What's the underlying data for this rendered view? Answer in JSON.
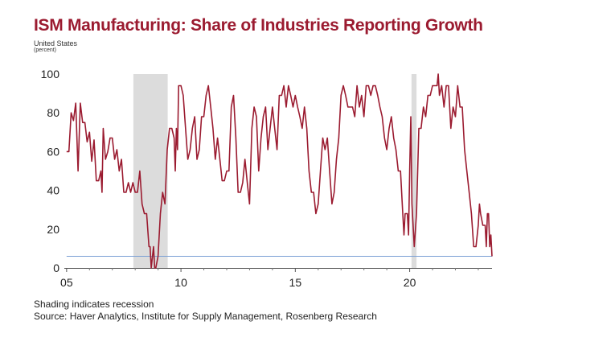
{
  "title": "ISM Manufacturing: Share of Industries Reporting Growth",
  "subtitle_region": "United States",
  "subtitle_unit": "(percent)",
  "footnote": "Shading indicates recession",
  "source": "Source: Haver Analytics, Institute for Supply Management, Rosenberg Research",
  "colors": {
    "series": "#9b1b30",
    "reference": "#7a9fd4",
    "recession": "#dcdcdc",
    "title": "#9b1b30"
  },
  "chart_data": {
    "type": "line",
    "title": "ISM Manufacturing: Share of Industries Reporting Growth",
    "xlabel": "",
    "ylabel": "percent",
    "xlim": [
      2004.9,
      2023.6
    ],
    "ylim": [
      0,
      100
    ],
    "x_ticks": [
      2005,
      2010,
      2015,
      2020
    ],
    "x_tick_labels": [
      "05",
      "10",
      "15",
      "20"
    ],
    "y_ticks": [
      0,
      20,
      40,
      60,
      80,
      100
    ],
    "y_tick_labels": [
      "0",
      "20",
      "40",
      "60",
      "80",
      "100"
    ],
    "recessions": [
      [
        2007.92,
        2009.42
      ],
      [
        2020.08,
        2020.3
      ]
    ],
    "reference_line": 6,
    "series": [
      {
        "name": "Share of industries reporting growth",
        "points": [
          [
            2005.0,
            60
          ],
          [
            2005.1,
            60
          ],
          [
            2005.2,
            80
          ],
          [
            2005.3,
            76
          ],
          [
            2005.4,
            85
          ],
          [
            2005.5,
            50
          ],
          [
            2005.6,
            85
          ],
          [
            2005.7,
            75
          ],
          [
            2005.8,
            75
          ],
          [
            2005.9,
            65
          ],
          [
            2006.0,
            70
          ],
          [
            2006.1,
            55
          ],
          [
            2006.2,
            66
          ],
          [
            2006.3,
            45
          ],
          [
            2006.4,
            45
          ],
          [
            2006.5,
            50
          ],
          [
            2006.55,
            39
          ],
          [
            2006.6,
            72
          ],
          [
            2006.7,
            56
          ],
          [
            2006.8,
            60
          ],
          [
            2006.9,
            67
          ],
          [
            2007.0,
            67
          ],
          [
            2007.1,
            56
          ],
          [
            2007.2,
            61
          ],
          [
            2007.3,
            50
          ],
          [
            2007.4,
            56
          ],
          [
            2007.5,
            39
          ],
          [
            2007.6,
            39
          ],
          [
            2007.7,
            44
          ],
          [
            2007.8,
            39
          ],
          [
            2007.9,
            44
          ],
          [
            2008.0,
            39
          ],
          [
            2008.1,
            39
          ],
          [
            2008.2,
            50
          ],
          [
            2008.3,
            33
          ],
          [
            2008.4,
            28
          ],
          [
            2008.5,
            28
          ],
          [
            2008.6,
            11
          ],
          [
            2008.65,
            11
          ],
          [
            2008.7,
            0
          ],
          [
            2008.8,
            11
          ],
          [
            2008.85,
            0
          ],
          [
            2008.9,
            0
          ],
          [
            2009.0,
            6
          ],
          [
            2009.1,
            28
          ],
          [
            2009.2,
            39
          ],
          [
            2009.3,
            33
          ],
          [
            2009.4,
            61
          ],
          [
            2009.5,
            72
          ],
          [
            2009.6,
            72
          ],
          [
            2009.7,
            67
          ],
          [
            2009.75,
            50
          ],
          [
            2009.8,
            72
          ],
          [
            2009.85,
            61
          ],
          [
            2009.9,
            94
          ],
          [
            2010.0,
            94
          ],
          [
            2010.1,
            89
          ],
          [
            2010.2,
            72
          ],
          [
            2010.3,
            56
          ],
          [
            2010.4,
            61
          ],
          [
            2010.5,
            72
          ],
          [
            2010.6,
            78
          ],
          [
            2010.7,
            56
          ],
          [
            2010.8,
            61
          ],
          [
            2010.9,
            78
          ],
          [
            2011.0,
            78
          ],
          [
            2011.1,
            89
          ],
          [
            2011.2,
            94
          ],
          [
            2011.3,
            83
          ],
          [
            2011.4,
            72
          ],
          [
            2011.5,
            56
          ],
          [
            2011.6,
            67
          ],
          [
            2011.7,
            56
          ],
          [
            2011.8,
            45
          ],
          [
            2011.9,
            45
          ],
          [
            2012.0,
            50
          ],
          [
            2012.1,
            50
          ],
          [
            2012.2,
            83
          ],
          [
            2012.3,
            89
          ],
          [
            2012.4,
            67
          ],
          [
            2012.5,
            39
          ],
          [
            2012.6,
            39
          ],
          [
            2012.7,
            44
          ],
          [
            2012.8,
            56
          ],
          [
            2012.9,
            44
          ],
          [
            2013.0,
            33
          ],
          [
            2013.1,
            72
          ],
          [
            2013.2,
            83
          ],
          [
            2013.3,
            78
          ],
          [
            2013.4,
            50
          ],
          [
            2013.5,
            67
          ],
          [
            2013.6,
            78
          ],
          [
            2013.7,
            83
          ],
          [
            2013.8,
            61
          ],
          [
            2013.9,
            72
          ],
          [
            2014.0,
            83
          ],
          [
            2014.1,
            72
          ],
          [
            2014.2,
            61
          ],
          [
            2014.3,
            89
          ],
          [
            2014.4,
            89
          ],
          [
            2014.5,
            94
          ],
          [
            2014.6,
            83
          ],
          [
            2014.7,
            94
          ],
          [
            2014.8,
            89
          ],
          [
            2014.9,
            83
          ],
          [
            2015.0,
            89
          ],
          [
            2015.1,
            83
          ],
          [
            2015.2,
            78
          ],
          [
            2015.3,
            72
          ],
          [
            2015.4,
            83
          ],
          [
            2015.5,
            72
          ],
          [
            2015.6,
            50
          ],
          [
            2015.7,
            39
          ],
          [
            2015.8,
            39
          ],
          [
            2015.9,
            28
          ],
          [
            2016.0,
            33
          ],
          [
            2016.1,
            50
          ],
          [
            2016.2,
            67
          ],
          [
            2016.3,
            61
          ],
          [
            2016.4,
            67
          ],
          [
            2016.5,
            50
          ],
          [
            2016.6,
            33
          ],
          [
            2016.7,
            39
          ],
          [
            2016.8,
            56
          ],
          [
            2016.9,
            67
          ],
          [
            2017.0,
            89
          ],
          [
            2017.1,
            94
          ],
          [
            2017.2,
            89
          ],
          [
            2017.3,
            83
          ],
          [
            2017.4,
            83
          ],
          [
            2017.5,
            83
          ],
          [
            2017.6,
            78
          ],
          [
            2017.7,
            94
          ],
          [
            2017.8,
            83
          ],
          [
            2017.9,
            89
          ],
          [
            2018.0,
            78
          ],
          [
            2018.1,
            94
          ],
          [
            2018.2,
            94
          ],
          [
            2018.3,
            89
          ],
          [
            2018.4,
            94
          ],
          [
            2018.5,
            94
          ],
          [
            2018.6,
            89
          ],
          [
            2018.7,
            83
          ],
          [
            2018.8,
            78
          ],
          [
            2018.9,
            67
          ],
          [
            2019.0,
            61
          ],
          [
            2019.1,
            72
          ],
          [
            2019.2,
            78
          ],
          [
            2019.3,
            67
          ],
          [
            2019.4,
            61
          ],
          [
            2019.5,
            50
          ],
          [
            2019.6,
            50
          ],
          [
            2019.7,
            28
          ],
          [
            2019.75,
            17
          ],
          [
            2019.8,
            28
          ],
          [
            2019.9,
            28
          ],
          [
            2019.95,
            17
          ],
          [
            2020.0,
            50
          ],
          [
            2020.05,
            78
          ],
          [
            2020.1,
            33
          ],
          [
            2020.2,
            11
          ],
          [
            2020.3,
            28
          ],
          [
            2020.4,
            72
          ],
          [
            2020.5,
            72
          ],
          [
            2020.6,
            83
          ],
          [
            2020.7,
            78
          ],
          [
            2020.8,
            89
          ],
          [
            2020.9,
            89
          ],
          [
            2021.0,
            94
          ],
          [
            2021.1,
            94
          ],
          [
            2021.2,
            94
          ],
          [
            2021.25,
            100
          ],
          [
            2021.3,
            89
          ],
          [
            2021.4,
            94
          ],
          [
            2021.5,
            83
          ],
          [
            2021.6,
            94
          ],
          [
            2021.7,
            94
          ],
          [
            2021.8,
            72
          ],
          [
            2021.9,
            83
          ],
          [
            2022.0,
            78
          ],
          [
            2022.1,
            94
          ],
          [
            2022.2,
            83
          ],
          [
            2022.3,
            83
          ],
          [
            2022.4,
            61
          ],
          [
            2022.5,
            50
          ],
          [
            2022.6,
            39
          ],
          [
            2022.7,
            28
          ],
          [
            2022.8,
            11
          ],
          [
            2022.9,
            11
          ],
          [
            2023.0,
            22
          ],
          [
            2023.05,
            33
          ],
          [
            2023.1,
            28
          ],
          [
            2023.2,
            22
          ],
          [
            2023.3,
            22
          ],
          [
            2023.35,
            11
          ],
          [
            2023.4,
            28
          ],
          [
            2023.45,
            28
          ],
          [
            2023.5,
            11
          ],
          [
            2023.55,
            17
          ],
          [
            2023.6,
            6
          ]
        ]
      }
    ]
  }
}
